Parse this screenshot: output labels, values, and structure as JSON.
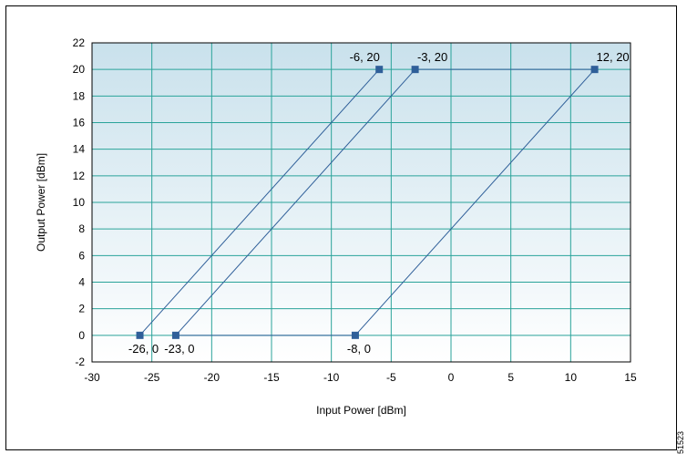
{
  "chart_data": {
    "type": "line",
    "title": "",
    "xlabel": "Input Power [dBm]",
    "ylabel": "Output Power [dBm]",
    "xlim": [
      -30,
      15
    ],
    "ylim": [
      -2,
      22
    ],
    "x_ticks": [
      -30,
      -25,
      -20,
      -15,
      -10,
      -5,
      0,
      5,
      10,
      15
    ],
    "y_ticks": [
      -2,
      0,
      2,
      4,
      6,
      8,
      10,
      12,
      14,
      16,
      18,
      20,
      22
    ],
    "grid": true,
    "series": [
      {
        "points": [
          [
            -26,
            0
          ],
          [
            -6,
            20
          ]
        ]
      },
      {
        "points": [
          [
            -23,
            0
          ],
          [
            -3,
            20
          ]
        ]
      },
      {
        "points": [
          [
            -8,
            0
          ],
          [
            12,
            20
          ]
        ]
      },
      {
        "points": [
          [
            -23,
            0
          ],
          [
            -8,
            0
          ]
        ]
      },
      {
        "points": [
          [
            -3,
            20
          ],
          [
            12,
            20
          ]
        ]
      }
    ],
    "markers": [
      {
        "x": -26,
        "y": 0,
        "label": "-26, 0"
      },
      {
        "x": -23,
        "y": 0,
        "label": "-23, 0"
      },
      {
        "x": -8,
        "y": 0,
        "label": "-8, 0"
      },
      {
        "x": -6,
        "y": 20,
        "label": "-6, 20"
      },
      {
        "x": -3,
        "y": 20,
        "label": "-3, 20"
      },
      {
        "x": 12,
        "y": 20,
        "label": "12, 20"
      }
    ],
    "line_color": "#2f5f99",
    "grid_color": "#2aa39a",
    "plot_bg_top": "#c9e1ec",
    "plot_bg_bottom": "#ffffff"
  },
  "figure_code": "51523"
}
